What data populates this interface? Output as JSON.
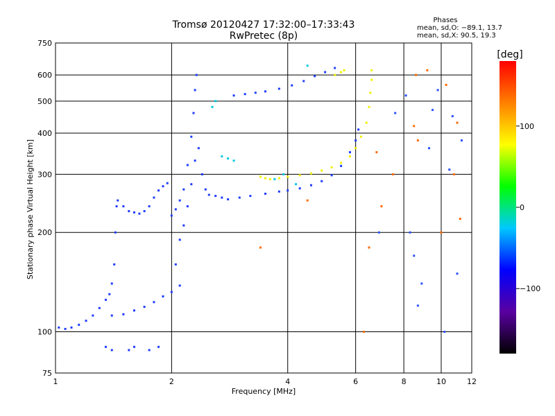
{
  "chart_data": {
    "type": "scatter",
    "title": "Tromsø 20120427 17:32:00–17:33:43",
    "subtitle": "RwPretec (8p)",
    "xlabel": "Frequency [MHz]",
    "ylabel": "Stationary phase Virtual Height [km]",
    "x_scale": "log",
    "y_scale": "log",
    "xlim": [
      1,
      12
    ],
    "ylim": [
      75,
      750
    ],
    "x_ticks": [
      1,
      2,
      4,
      6,
      8,
      10,
      12
    ],
    "y_ticks": [
      75,
      100,
      200,
      300,
      400,
      500,
      600,
      750
    ],
    "grid": true,
    "phases_box": {
      "title": "Phases",
      "line1": "mean, sd,O: −89.1, 13.7",
      "line2": "mean, sd,X:  90.5, 19.3"
    },
    "colorbar": {
      "label": "[deg]",
      "range": [
        -180,
        180
      ],
      "ticks": [
        100,
        0,
        -100
      ],
      "tick_labels": [
        "100",
        "0",
        "−100"
      ],
      "colormap": [
        "#000000",
        "#5a00a0",
        "#0000ff",
        "#00c8ff",
        "#00ff00",
        "#ffff00",
        "#ff8000",
        "#ff0000"
      ]
    },
    "series": [
      {
        "phase_deg": -95,
        "color": "#1e3cff",
        "points": [
          [
            1.02,
            103
          ],
          [
            1.06,
            102
          ],
          [
            1.1,
            103
          ],
          [
            1.15,
            105
          ],
          [
            1.2,
            108
          ],
          [
            1.25,
            112
          ],
          [
            1.3,
            118
          ],
          [
            1.35,
            125
          ],
          [
            1.38,
            130
          ],
          [
            1.4,
            140
          ],
          [
            1.42,
            160
          ],
          [
            1.43,
            200
          ],
          [
            1.44,
            240
          ],
          [
            1.45,
            250
          ],
          [
            1.5,
            240
          ],
          [
            1.55,
            232
          ],
          [
            1.6,
            230
          ],
          [
            1.65,
            228
          ],
          [
            1.7,
            232
          ],
          [
            1.75,
            240
          ],
          [
            1.8,
            255
          ],
          [
            1.85,
            268
          ],
          [
            1.9,
            276
          ],
          [
            1.95,
            282
          ],
          [
            1.4,
            112
          ],
          [
            1.5,
            113
          ],
          [
            1.6,
            116
          ],
          [
            1.7,
            119
          ],
          [
            1.8,
            123
          ],
          [
            1.9,
            128
          ],
          [
            2.0,
            132
          ],
          [
            2.1,
            138
          ],
          [
            2.0,
            225
          ],
          [
            2.05,
            235
          ],
          [
            2.1,
            250
          ],
          [
            2.15,
            270
          ],
          [
            2.2,
            320
          ],
          [
            2.25,
            390
          ],
          [
            2.28,
            460
          ],
          [
            2.3,
            540
          ],
          [
            2.32,
            600
          ],
          [
            2.05,
            160
          ],
          [
            2.1,
            190
          ],
          [
            2.15,
            210
          ],
          [
            2.2,
            240
          ],
          [
            2.25,
            280
          ],
          [
            2.3,
            330
          ],
          [
            2.35,
            360
          ],
          [
            2.4,
            300
          ],
          [
            2.45,
            270
          ],
          [
            2.5,
            260
          ],
          [
            2.6,
            258
          ],
          [
            2.7,
            255
          ],
          [
            2.8,
            252
          ],
          [
            3.0,
            255
          ],
          [
            3.2,
            258
          ],
          [
            3.5,
            262
          ],
          [
            3.8,
            266
          ],
          [
            4.0,
            268
          ],
          [
            4.3,
            272
          ],
          [
            4.6,
            278
          ],
          [
            4.9,
            286
          ],
          [
            5.2,
            298
          ],
          [
            5.5,
            318
          ],
          [
            5.8,
            350
          ],
          [
            6.0,
            380
          ],
          [
            6.1,
            410
          ],
          [
            2.9,
            520
          ],
          [
            3.1,
            525
          ],
          [
            3.3,
            530
          ],
          [
            3.5,
            535
          ],
          [
            3.8,
            545
          ],
          [
            4.1,
            558
          ],
          [
            4.4,
            575
          ],
          [
            4.7,
            595
          ],
          [
            5.0,
            612
          ],
          [
            5.3,
            630
          ],
          [
            1.35,
            90
          ],
          [
            1.4,
            88
          ],
          [
            1.55,
            88
          ],
          [
            1.6,
            90
          ],
          [
            1.75,
            88
          ],
          [
            1.85,
            90
          ]
        ]
      },
      {
        "phase_deg": 95,
        "color": "#f0f000",
        "points": [
          [
            3.4,
            295
          ],
          [
            3.5,
            292
          ],
          [
            3.6,
            290
          ],
          [
            3.8,
            292
          ],
          [
            4.0,
            295
          ],
          [
            4.3,
            298
          ],
          [
            4.6,
            302
          ],
          [
            4.9,
            308
          ],
          [
            5.2,
            315
          ],
          [
            5.5,
            325
          ],
          [
            5.8,
            340
          ],
          [
            6.0,
            360
          ],
          [
            6.2,
            390
          ],
          [
            6.4,
            430
          ],
          [
            6.5,
            480
          ],
          [
            6.55,
            530
          ],
          [
            6.6,
            580
          ],
          [
            6.6,
            620
          ],
          [
            5.3,
            600
          ],
          [
            5.5,
            612
          ],
          [
            5.6,
            620
          ]
        ]
      },
      {
        "phase_deg": 20,
        "color": "#00c8e0",
        "points": [
          [
            2.7,
            340
          ],
          [
            2.8,
            335
          ],
          [
            2.9,
            330
          ],
          [
            2.6,
            500
          ],
          [
            2.55,
            480
          ],
          [
            4.2,
            280
          ],
          [
            4.5,
            640
          ],
          [
            3.7,
            290
          ],
          [
            3.9,
            300
          ]
        ]
      },
      {
        "phase_deg": 150,
        "color": "#ff6a00",
        "points": [
          [
            6.3,
            100
          ],
          [
            6.5,
            180
          ],
          [
            7.0,
            240
          ],
          [
            8.6,
            600
          ],
          [
            8.7,
            380
          ],
          [
            9.2,
            620
          ],
          [
            10.0,
            200
          ],
          [
            10.3,
            560
          ],
          [
            10.8,
            300
          ],
          [
            11.0,
            430
          ],
          [
            11.2,
            220
          ],
          [
            8.5,
            420
          ],
          [
            7.5,
            300
          ],
          [
            6.8,
            350
          ],
          [
            4.5,
            250
          ],
          [
            3.4,
            180
          ]
        ]
      },
      {
        "phase_deg": -80,
        "color": "#2a50ff",
        "points": [
          [
            8.1,
            520
          ],
          [
            8.3,
            200
          ],
          [
            8.5,
            170
          ],
          [
            8.7,
            120
          ],
          [
            8.9,
            140
          ],
          [
            9.3,
            360
          ],
          [
            9.5,
            470
          ],
          [
            9.8,
            540
          ],
          [
            10.2,
            100
          ],
          [
            10.5,
            310
          ],
          [
            10.7,
            450
          ],
          [
            11.0,
            150
          ],
          [
            11.3,
            380
          ],
          [
            7.6,
            460
          ],
          [
            6.9,
            200
          ]
        ]
      }
    ]
  }
}
